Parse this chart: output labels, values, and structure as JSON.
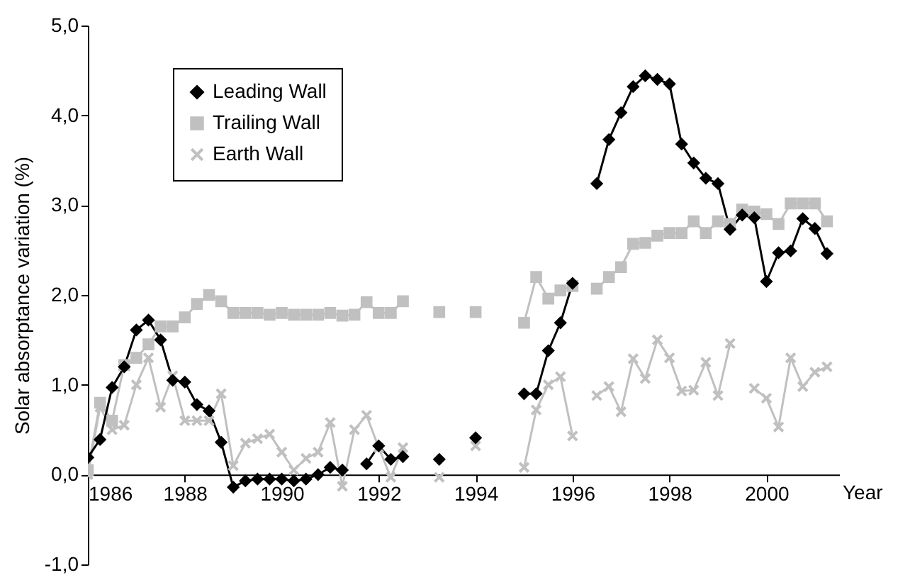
{
  "chart_data": {
    "type": "line",
    "xlabel": "Year",
    "ylabel": "Solar absorptance variation (%)",
    "x": [
      1986,
      1986.25,
      1986.5,
      1986.75,
      1987,
      1987.25,
      1987.5,
      1987.75,
      1988,
      1988.25,
      1988.5,
      1988.75,
      1989,
      1989.25,
      1989.5,
      1989.75,
      1990,
      1990.25,
      1990.5,
      1990.75,
      1991,
      1991.25,
      1991.5,
      1991.75,
      1992,
      1992.25,
      1992.5,
      1992.75,
      1993,
      1993.25,
      1993.5,
      1993.75,
      1994,
      1994.25,
      1994.5,
      1994.75,
      1995,
      1995.25,
      1995.5,
      1995.75,
      1996,
      1996.25,
      1996.5,
      1996.75,
      1997,
      1997.25,
      1997.5,
      1997.75,
      1998,
      1998.25,
      1998.5,
      1998.75,
      1999,
      1999.25,
      1999.5,
      1999.75,
      2000,
      2000.25,
      2000.5,
      2000.75,
      2001,
      2001.25
    ],
    "series": [
      {
        "name": "Leading Wall",
        "color": "#000000",
        "marker": "diamond",
        "values": [
          0.19,
          0.39,
          0.97,
          1.2,
          1.61,
          1.72,
          1.5,
          1.05,
          1.03,
          0.78,
          0.71,
          0.36,
          -0.14,
          -0.07,
          -0.05,
          -0.05,
          -0.05,
          -0.07,
          -0.05,
          0.0,
          0.08,
          0.05,
          null,
          0.12,
          0.32,
          0.17,
          0.2,
          null,
          null,
          0.17,
          null,
          null,
          0.41,
          null,
          null,
          null,
          0.9,
          0.9,
          1.38,
          1.69,
          2.13,
          null,
          3.24,
          3.73,
          4.03,
          4.32,
          4.44,
          4.4,
          4.35,
          3.68,
          3.47,
          3.3,
          3.24,
          2.73,
          2.89,
          2.86,
          2.15,
          2.47,
          2.49,
          2.85,
          2.74,
          2.46
        ]
      },
      {
        "name": "Trailing Wall",
        "color": "#c0c0c0",
        "marker": "square",
        "values": [
          0.05,
          0.8,
          0.6,
          1.22,
          1.3,
          1.45,
          1.65,
          1.65,
          1.75,
          1.9,
          2.0,
          1.93,
          1.8,
          1.8,
          1.8,
          1.78,
          1.8,
          1.78,
          1.78,
          1.78,
          1.8,
          1.77,
          1.78,
          1.92,
          1.8,
          1.8,
          1.93,
          null,
          null,
          1.81,
          null,
          null,
          1.81,
          null,
          null,
          null,
          1.69,
          2.2,
          1.96,
          2.05,
          2.1,
          null,
          2.07,
          2.2,
          2.31,
          2.57,
          2.58,
          2.66,
          2.69,
          2.69,
          2.82,
          2.69,
          2.82,
          2.79,
          2.95,
          2.93,
          2.9,
          2.79,
          3.02,
          3.02,
          3.02,
          2.82
        ]
      },
      {
        "name": "Earth Wall",
        "color": "#c0c0c0",
        "marker": "cross",
        "values": [
          0.0,
          0.75,
          0.5,
          0.55,
          1.0,
          1.3,
          0.75,
          1.1,
          0.6,
          0.6,
          0.6,
          0.9,
          0.1,
          0.35,
          0.4,
          0.45,
          0.25,
          0.05,
          0.18,
          0.25,
          0.58,
          -0.13,
          0.5,
          0.66,
          0.3,
          -0.03,
          0.3,
          null,
          null,
          -0.03,
          null,
          null,
          0.32,
          null,
          null,
          null,
          0.08,
          0.72,
          1.0,
          1.09,
          0.43,
          null,
          0.88,
          0.98,
          0.7,
          1.29,
          1.07,
          1.5,
          1.3,
          0.93,
          0.94,
          1.25,
          0.88,
          1.46,
          null,
          0.96,
          0.85,
          0.53,
          1.3,
          0.98,
          1.14,
          1.2
        ]
      }
    ],
    "xlim": [
      1986,
      2001.5
    ],
    "xticks": [
      1986,
      1988,
      1990,
      1992,
      1994,
      1996,
      1998,
      2000
    ],
    "ylim": [
      -1,
      5
    ],
    "yticks": [
      {
        "value": -1,
        "label": "-1,0"
      },
      {
        "value": 0,
        "label": "0,0"
      },
      {
        "value": 1,
        "label": "1,0"
      },
      {
        "value": 2,
        "label": "2,0"
      },
      {
        "value": 3,
        "label": "3,0"
      },
      {
        "value": 4,
        "label": "4,0"
      },
      {
        "value": 5,
        "label": "5,0"
      }
    ],
    "grid": false,
    "legend": "top left",
    "line_style": "solid"
  }
}
